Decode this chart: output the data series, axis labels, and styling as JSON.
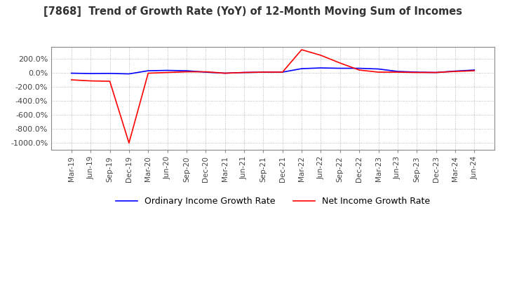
{
  "title": "[7868]  Trend of Growth Rate (YoY) of 12-Month Moving Sum of Incomes",
  "title_fontsize": 10.5,
  "background_color": "#ffffff",
  "plot_bg_color": "#ffffff",
  "ylim": [
    -1100,
    370
  ],
  "yticks": [
    200,
    0,
    -200,
    -400,
    -600,
    -800,
    -1000
  ],
  "legend_labels": [
    "Ordinary Income Growth Rate",
    "Net Income Growth Rate"
  ],
  "legend_colors": [
    "#0000ff",
    "#ff0000"
  ],
  "x_labels": [
    "Mar-19",
    "Jun-19",
    "Sep-19",
    "Dec-19",
    "Mar-20",
    "Jun-20",
    "Sep-20",
    "Dec-20",
    "Mar-21",
    "Jun-21",
    "Sep-21",
    "Dec-21",
    "Mar-22",
    "Jun-22",
    "Sep-22",
    "Dec-22",
    "Mar-23",
    "Jun-23",
    "Sep-23",
    "Dec-23",
    "Mar-24",
    "Jun-24"
  ],
  "ordinary_income_growth": [
    -5,
    -10,
    -8,
    -15,
    30,
    35,
    30,
    10,
    -5,
    5,
    10,
    10,
    60,
    70,
    65,
    65,
    55,
    20,
    10,
    5,
    25,
    40
  ],
  "net_income_growth": [
    -100,
    -115,
    -120,
    -1000,
    -5,
    5,
    15,
    15,
    -5,
    5,
    10,
    10,
    330,
    250,
    140,
    40,
    10,
    10,
    5,
    5,
    20,
    30
  ]
}
